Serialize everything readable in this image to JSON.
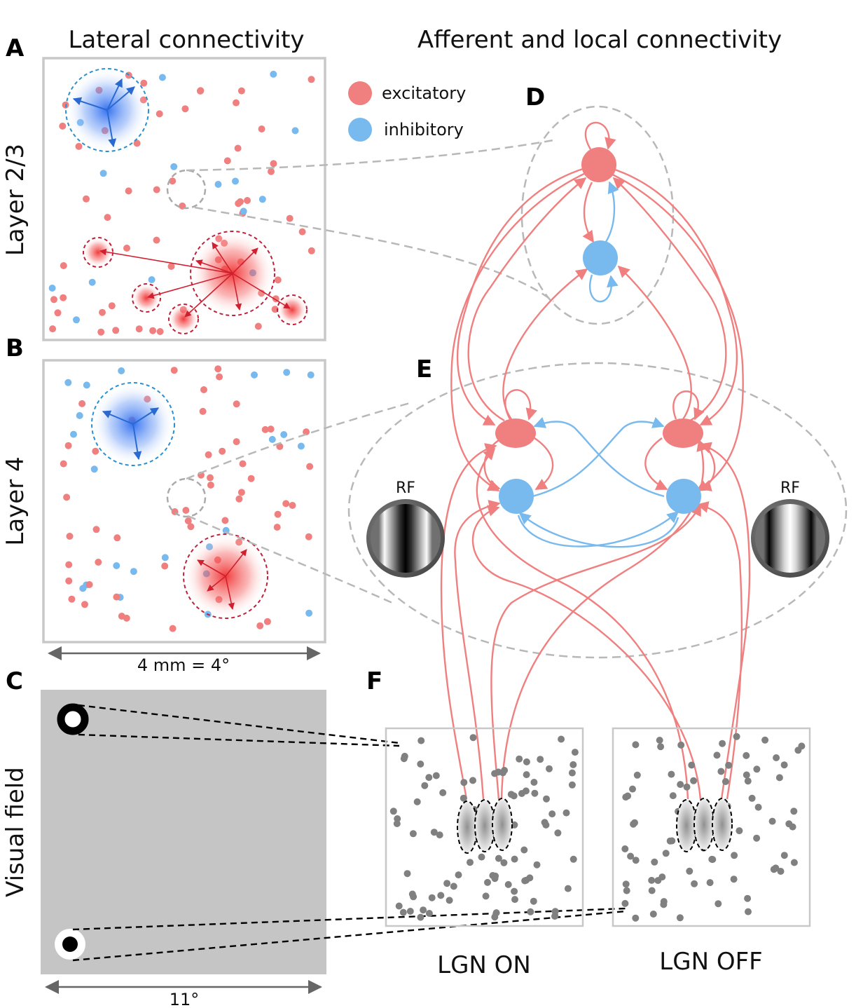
{
  "titles": {
    "lateral": "Lateral connectivity",
    "afferent": "Afferent and local connectivity"
  },
  "panels": {
    "a": "A",
    "b": "B",
    "c": "C",
    "d": "D",
    "e": "E",
    "f": "F"
  },
  "row_labels": {
    "layer23": "Layer 2/3",
    "layer4": "Layer 4",
    "visual_field": "Visual field"
  },
  "legend": {
    "excitatory": "excitatory",
    "inhibitory": "inhibitory"
  },
  "scale": {
    "cortex": "4 mm = 4°",
    "visual_field": "11°"
  },
  "rf_label": "RF",
  "lgn": {
    "on": "LGN ON",
    "off": "LGN OFF"
  },
  "colors": {
    "excitatory": "#f07f80",
    "inhibitory": "#78b9ee",
    "gray_frame": "#c8c8c8",
    "lgn_dot": "#808080",
    "visual_field_bg": "#c5c5c5"
  }
}
